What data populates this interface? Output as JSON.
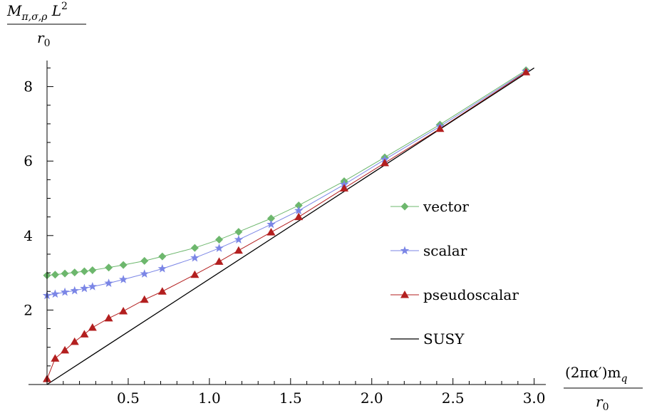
{
  "chart_data": {
    "type": "line",
    "xlabel": {
      "numerator": "(2πα′)m",
      "numerator_sub": "q",
      "denominator": "r",
      "denominator_sub": "0"
    },
    "ylabel": {
      "numerator": "M",
      "numerator_sub": "π,σ,ρ",
      "numerator_tail": " L",
      "numerator_sup": "2",
      "denominator": "r",
      "denominator_sub": "0"
    },
    "xlim": [
      0,
      3.05
    ],
    "ylim": [
      0,
      8.7
    ],
    "x_ticks": [
      0.5,
      1.0,
      1.5,
      2.0,
      2.5,
      3.0
    ],
    "x_tick_labels": [
      "0.5",
      "1.0",
      "1.5",
      "2.0",
      "2.5",
      "3.0"
    ],
    "y_ticks": [
      2,
      4,
      6,
      8
    ],
    "y_tick_labels": [
      "2",
      "4",
      "6",
      "8"
    ],
    "legend_position": "right",
    "series": [
      {
        "name": "vector",
        "color": "#6db76d",
        "marker": "diamond",
        "x": [
          0.0,
          0.05,
          0.11,
          0.17,
          0.23,
          0.28,
          0.38,
          0.47,
          0.6,
          0.71,
          0.91,
          1.06,
          1.18,
          1.38,
          1.55,
          1.83,
          2.08,
          2.42,
          2.95
        ],
        "y": [
          2.93,
          2.95,
          2.98,
          3.01,
          3.04,
          3.07,
          3.14,
          3.21,
          3.32,
          3.44,
          3.67,
          3.89,
          4.1,
          4.46,
          4.81,
          5.46,
          6.1,
          6.98,
          8.44
        ]
      },
      {
        "name": "scalar",
        "color": "#7b86e6",
        "marker": "star",
        "x": [
          0.0,
          0.05,
          0.11,
          0.17,
          0.23,
          0.28,
          0.38,
          0.47,
          0.6,
          0.71,
          0.91,
          1.06,
          1.18,
          1.38,
          1.55,
          1.83,
          2.08,
          2.42,
          2.95
        ],
        "y": [
          2.39,
          2.43,
          2.48,
          2.52,
          2.58,
          2.63,
          2.72,
          2.82,
          2.97,
          3.11,
          3.4,
          3.66,
          3.89,
          4.3,
          4.67,
          5.37,
          6.04,
          6.93,
          8.41
        ]
      },
      {
        "name": "pseudoscalar",
        "color": "#b31f1f",
        "marker": "triangle",
        "x": [
          0.0,
          0.05,
          0.11,
          0.17,
          0.23,
          0.28,
          0.38,
          0.47,
          0.6,
          0.71,
          0.91,
          1.06,
          1.18,
          1.38,
          1.55,
          1.83,
          2.08,
          2.42,
          2.95
        ],
        "y": [
          0.15,
          0.7,
          0.92,
          1.15,
          1.35,
          1.53,
          1.78,
          1.97,
          2.28,
          2.5,
          2.95,
          3.3,
          3.6,
          4.09,
          4.5,
          5.27,
          5.95,
          6.87,
          8.39
        ]
      },
      {
        "name": "SUSY",
        "color": "#000000",
        "marker": "none",
        "x": [
          0.0,
          3.0
        ],
        "y": [
          0.0,
          8.5
        ]
      }
    ]
  }
}
